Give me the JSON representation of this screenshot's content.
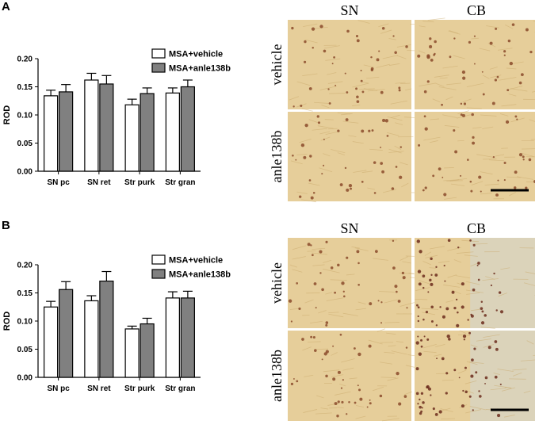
{
  "panels": [
    {
      "letter": "A",
      "chart_data": {
        "type": "bar",
        "categories": [
          "SN pc",
          "SN ret",
          "Str purk",
          "Str gran"
        ],
        "series": [
          {
            "name": "MSA+vehicle",
            "values": [
              0.134,
              0.162,
              0.118,
              0.139
            ],
            "errors": [
              0.01,
              0.012,
              0.01,
              0.009
            ],
            "color": "#ffffff"
          },
          {
            "name": "MSA+anle138b",
            "values": [
              0.141,
              0.155,
              0.138,
              0.15
            ],
            "errors": [
              0.013,
              0.015,
              0.01,
              0.012
            ],
            "color": "#808080"
          }
        ],
        "ylabel": "ROD",
        "ylim": [
          0,
          0.2
        ],
        "yticks": [
          "0.00",
          "0.05",
          "0.10",
          "0.15",
          "0.20"
        ],
        "legend_position": "top-right",
        "grid": false
      },
      "micrographs": {
        "columns": [
          "SN",
          "CB"
        ],
        "rows": [
          "vehicle",
          "anle138b"
        ],
        "scale_bar": true
      }
    },
    {
      "letter": "B",
      "chart_data": {
        "type": "bar",
        "categories": [
          "SN pc",
          "SN ret",
          "Str purk",
          "Str gran"
        ],
        "series": [
          {
            "name": "MSA+vehicle",
            "values": [
              0.125,
              0.136,
              0.086,
              0.141
            ],
            "errors": [
              0.01,
              0.009,
              0.005,
              0.011
            ],
            "color": "#ffffff"
          },
          {
            "name": "MSA+anle138b",
            "values": [
              0.156,
              0.171,
              0.095,
              0.141
            ],
            "errors": [
              0.014,
              0.017,
              0.01,
              0.012
            ],
            "color": "#808080"
          }
        ],
        "ylabel": "ROD",
        "ylim": [
          0,
          0.2
        ],
        "yticks": [
          "0.00",
          "0.05",
          "0.10",
          "0.15",
          "0.20"
        ],
        "legend_position": "top-right",
        "grid": false
      },
      "micrographs": {
        "columns": [
          "SN",
          "CB"
        ],
        "rows": [
          "vehicle",
          "anle138b"
        ],
        "scale_bar": true
      }
    }
  ],
  "colors": {
    "micro_bg": "#e6ce9a",
    "micro_dot": "#8a4a2a",
    "micro_dot_dense": "#6b2c1c",
    "micro_pale": "#d8d4c0"
  }
}
